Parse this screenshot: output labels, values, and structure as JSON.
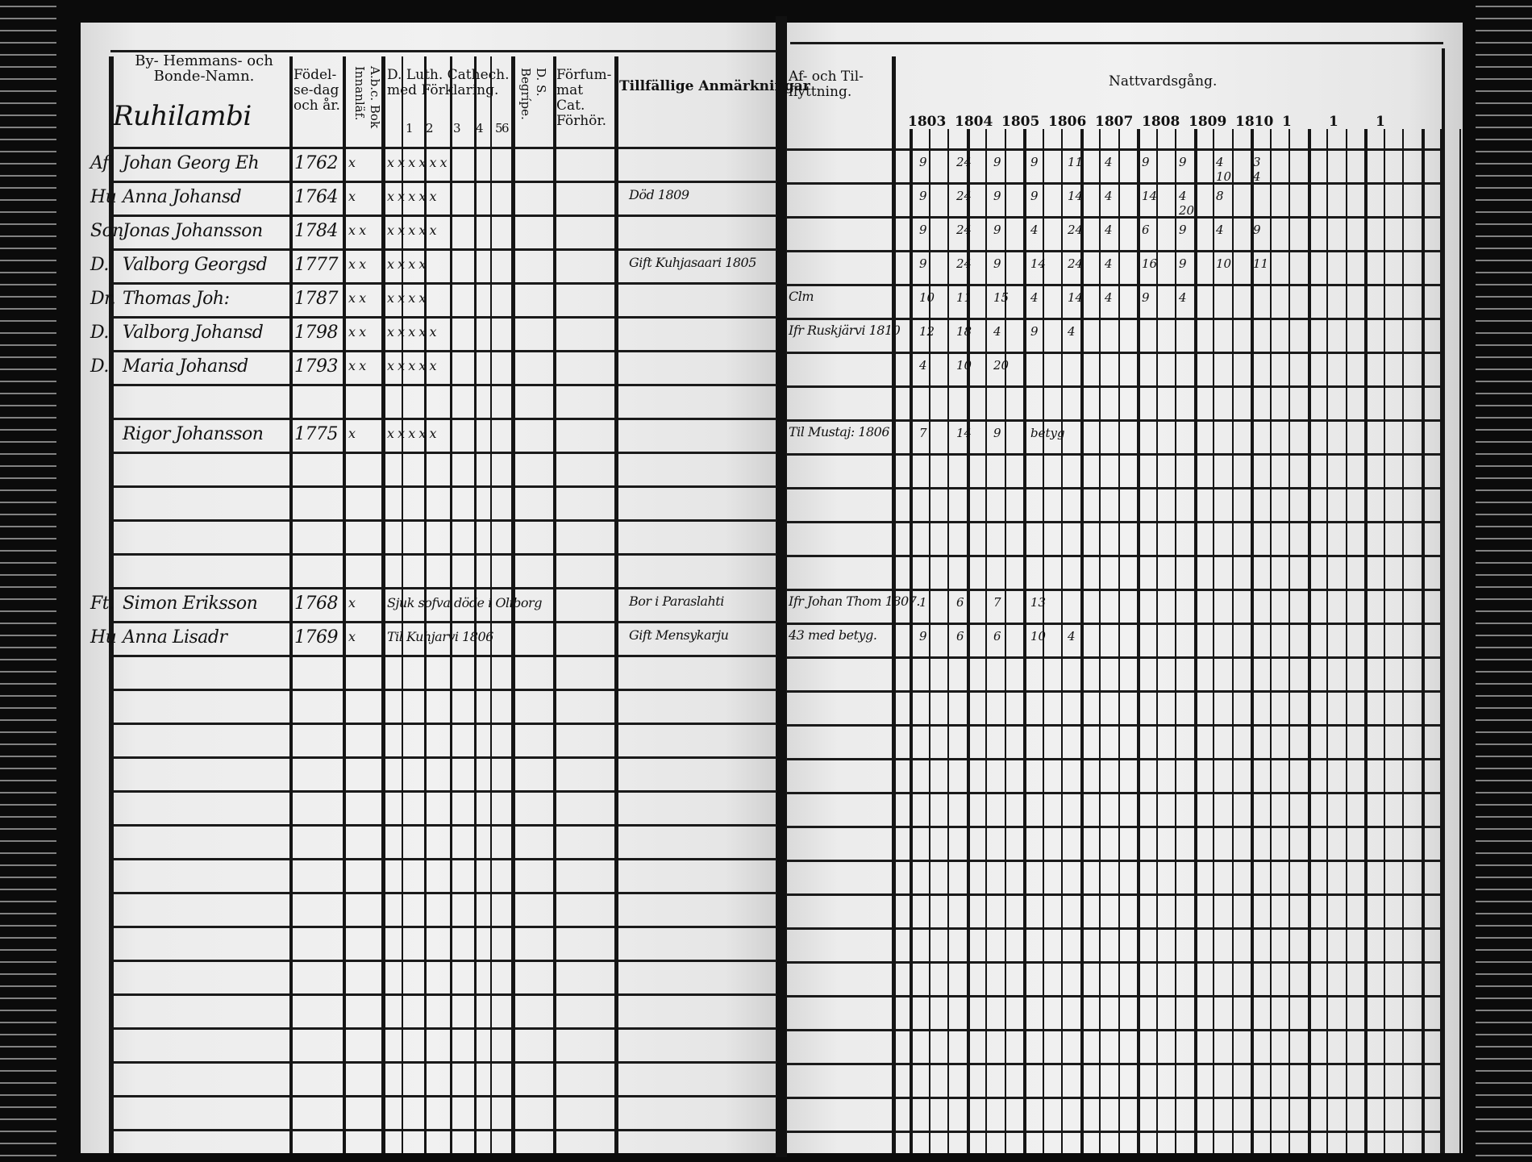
{
  "header": {
    "names_col": "By- Hemmans- och Bonde-Namn.",
    "village": "Ruhilambi",
    "birth_col": "Födel-se-dag och år.",
    "abc_col": "A.b.c. Bok Innanläf.",
    "cathech_col": "D. Luth. Cathech. med Förklaring.",
    "cathech_parts": [
      "1",
      "2",
      "3",
      "4",
      "5",
      "6"
    ],
    "ds_col": "D. S. Begrípe.",
    "neglect_col": "Förfum-mat Cat. Förhör.",
    "remarks_col": "Tillfällige Anmärkningar",
    "moves_col": "Af- och Til-flyttning.",
    "communion_col": "Nattvardsgång.",
    "years": [
      "1803",
      "1804",
      "1805",
      "1806",
      "1807",
      "1808",
      "1809",
      "1810",
      "1",
      "1",
      "1"
    ]
  },
  "entries": [
    {
      "row": 0,
      "prefix": "Af",
      "name": "Johan Georg Eh",
      "year": "1762",
      "abc": "x",
      "cathech": "x x x x x x",
      "remark": "",
      "move": "",
      "communion": [
        "9",
        "24",
        "9",
        "9",
        "11",
        "4",
        "9",
        "9",
        "4 10",
        "3 4"
      ]
    },
    {
      "row": 1,
      "prefix": "Hu",
      "name": "Anna Johansd",
      "year": "1764",
      "abc": "x",
      "cathech": "x x x x x",
      "remark": "Död 1809",
      "move": "",
      "communion": [
        "9",
        "24",
        "9",
        "9",
        "14",
        "4",
        "14",
        "4 20",
        "8"
      ]
    },
    {
      "row": 2,
      "prefix": "Son",
      "name": "Jonas Johansson",
      "year": "1784",
      "abc": "x x",
      "cathech": "x x x x x",
      "remark": "",
      "move": "",
      "communion": [
        "9",
        "24",
        "9",
        "4",
        "24",
        "4",
        "6",
        "9",
        "4",
        "9"
      ]
    },
    {
      "row": 3,
      "prefix": "D.",
      "name": "Valborg Georgsd",
      "year": "1777",
      "abc": "x x",
      "cathech": "x x x x",
      "remark": "Gift Kuhjasaari 1805",
      "move": "",
      "communion": [
        "9",
        "24",
        "9",
        "14",
        "24",
        "4",
        "16",
        "9",
        "10",
        "11"
      ]
    },
    {
      "row": 4,
      "prefix": "Dr.",
      "name": "Thomas Joh:",
      "year": "1787",
      "abc": "x x",
      "cathech": "x x x x",
      "remark": "",
      "move": "Clm",
      "communion": [
        "10",
        "11",
        "15",
        "4",
        "14",
        "4",
        "9",
        "4"
      ]
    },
    {
      "row": 5,
      "prefix": "D.",
      "name": "Valborg Johansd",
      "year": "1798",
      "abc": "x x",
      "cathech": "x x x x x",
      "remark": "",
      "move": "Ifr Ruskjärvi 1810",
      "communion": [
        "12",
        "18",
        "4",
        "9",
        "4"
      ]
    },
    {
      "row": 6,
      "prefix": "D.",
      "name": "Maria Johansd",
      "year": "1793",
      "abc": "x x",
      "cathech": "x x x x x",
      "remark": "",
      "move": "",
      "communion": [
        "4",
        "10",
        "20"
      ]
    },
    {
      "row": 8,
      "prefix": "",
      "name": "Rigor Johansson",
      "year": "1775",
      "abc": "x",
      "cathech": "x x x x x",
      "remark": "",
      "move": "Til Mustaj: 1806",
      "communion": [
        "7",
        "14",
        "9",
        "betyg"
      ]
    },
    {
      "row": 13,
      "prefix": "Ft.",
      "name": "Simon Eriksson",
      "year": "1768",
      "abc": "x",
      "cathech": "Sjuk sofva döde i Oliborg",
      "remark": "Bor i Paraslahti",
      "move": "Ifr Johan Thom 1807.",
      "communion": [
        "1",
        "6",
        "7",
        "13"
      ]
    },
    {
      "row": 14,
      "prefix": "Hu",
      "name": "Anna Lisadr",
      "year": "1769",
      "abc": "x",
      "cathech": "Til Kuhjarvi 1806",
      "remark": "Gift Mensykarju",
      "move": "43 med betyg.",
      "communion": [
        "9",
        "6",
        "6",
        "10",
        "4"
      ]
    }
  ],
  "colors": {
    "ink": "#151515",
    "paper": "#ececec",
    "background": "#0b0b0b"
  }
}
